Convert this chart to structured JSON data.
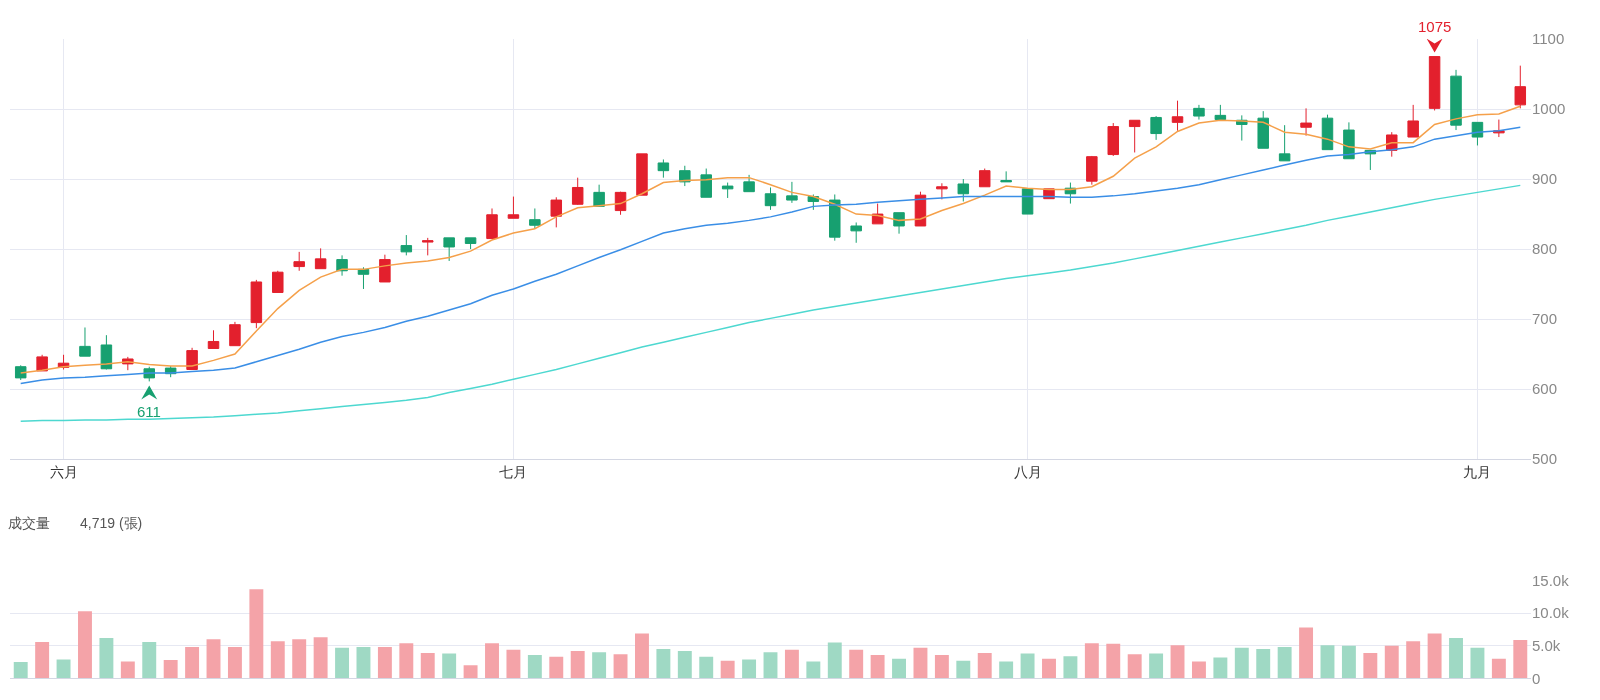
{
  "chart_data": [
    {
      "type": "candlestick",
      "categories": [
        null,
        null,
        "六月",
        null,
        null,
        null,
        null,
        null,
        null,
        null,
        null,
        null,
        null,
        null,
        null,
        null,
        null,
        null,
        null,
        null,
        null,
        null,
        null,
        "七月",
        null,
        null,
        null,
        null,
        null,
        null,
        null,
        null,
        null,
        null,
        null,
        null,
        null,
        null,
        null,
        null,
        null,
        null,
        null,
        null,
        null,
        null,
        null,
        "八月",
        null,
        null,
        null,
        null,
        null,
        null,
        null,
        null,
        null,
        null,
        null,
        null,
        null,
        null,
        null,
        null,
        null,
        null,
        null,
        null,
        "九月",
        null,
        null
      ],
      "series": [
        {
          "type": "candlestick",
          "ohlc": [
            [
              632,
              634,
              613,
              616
            ],
            [
              626,
              649,
              626,
              646
            ],
            [
              631,
              649,
              628,
              637
            ],
            [
              661,
              688,
              647,
              647
            ],
            [
              663,
              677,
              628,
              629
            ],
            [
              636,
              646,
              627,
              643
            ],
            [
              629,
              632,
              611,
              616
            ],
            [
              630,
              633,
              617,
              622
            ],
            [
              628,
              659,
              628,
              655
            ],
            [
              658,
              684,
              658,
              668
            ],
            [
              662,
              696,
              662,
              692
            ],
            [
              695,
              756,
              687,
              753
            ],
            [
              738,
              769,
              738,
              767
            ],
            [
              775,
              796,
              769,
              782
            ],
            [
              772,
              801,
              772,
              786
            ],
            [
              785,
              791,
              762,
              769
            ],
            [
              771,
              774,
              743,
              764
            ],
            [
              753,
              792,
              753,
              785
            ],
            [
              805,
              820,
              791,
              796
            ],
            [
              810,
              816,
              791,
              812
            ],
            [
              816,
              816,
              783,
              803
            ],
            [
              816,
              816,
              800,
              808
            ],
            [
              815,
              858,
              815,
              849
            ],
            [
              844,
              875,
              844,
              849
            ],
            [
              842,
              858,
              829,
              834
            ],
            [
              847,
              874,
              831,
              870
            ],
            [
              864,
              902,
              863,
              888
            ],
            [
              881,
              892,
              861,
              861
            ],
            [
              855,
              882,
              849,
              881
            ],
            [
              877,
              936,
              877,
              936
            ],
            [
              923,
              928,
              902,
              912
            ],
            [
              912,
              919,
              890,
              896
            ],
            [
              906,
              915,
              874,
              874
            ],
            [
              890,
              895,
              873,
              886
            ],
            [
              896,
              906,
              882,
              882
            ],
            [
              879,
              888,
              856,
              862
            ],
            [
              876,
              896,
              866,
              870
            ],
            [
              875,
              878,
              856,
              868
            ],
            [
              870,
              878,
              812,
              817
            ],
            [
              833,
              838,
              809,
              826
            ],
            [
              836,
              865,
              836,
              850
            ],
            [
              852,
              852,
              822,
              833
            ],
            [
              833,
              882,
              833,
              877
            ],
            [
              886,
              894,
              871,
              889
            ],
            [
              893,
              900,
              868,
              879
            ],
            [
              889,
              915,
              889,
              912
            ],
            [
              898,
              911,
              896,
              896
            ],
            [
              886,
              886,
              850,
              850
            ],
            [
              872,
              886,
              872,
              886
            ],
            [
              887,
              895,
              865,
              879
            ],
            [
              897,
              933,
              892,
              932
            ],
            [
              935,
              980,
              933,
              975
            ],
            [
              975,
              984,
              938,
              984
            ],
            [
              988,
              990,
              956,
              965
            ],
            [
              981,
              1012,
              969,
              989
            ],
            [
              1001,
              1006,
              985,
              990
            ],
            [
              991,
              1006,
              983,
              985
            ],
            [
              984,
              991,
              955,
              978
            ],
            [
              987,
              997,
              944,
              944
            ],
            [
              936,
              977,
              926,
              926
            ],
            [
              974,
              1001,
              962,
              980
            ],
            [
              987,
              992,
              942,
              942
            ],
            [
              970,
              981,
              929,
              929
            ],
            [
              941,
              941,
              913,
              936
            ],
            [
              941,
              967,
              932,
              963
            ],
            [
              960,
              1006,
              960,
              983
            ],
            [
              1001,
              1075,
              998,
              1075
            ],
            [
              1047,
              1056,
              970,
              977
            ],
            [
              981,
              981,
              948,
              960
            ],
            [
              966,
              985,
              960,
              969
            ],
            [
              1006,
              1062,
              1001,
              1032
            ]
          ],
          "colors": [
            "#17a070",
            "#e3202d",
            "#e3202d",
            "#17a070",
            "#17a070",
            "#e3202d",
            "#17a070",
            "#17a070",
            "#e3202d",
            "#e3202d",
            "#e3202d",
            "#e3202d",
            "#e3202d",
            "#e3202d",
            "#e3202d",
            "#17a070",
            "#17a070",
            "#e3202d",
            "#17a070",
            "#e3202d",
            "#17a070",
            "#17a070",
            "#e3202d",
            "#e3202d",
            "#17a070",
            "#e3202d",
            "#e3202d",
            "#17a070",
            "#e3202d",
            "#e3202d",
            "#17a070",
            "#17a070",
            "#17a070",
            "#17a070",
            "#17a070",
            "#17a070",
            "#17a070",
            "#17a070",
            "#17a070",
            "#17a070",
            "#e3202d",
            "#17a070",
            "#e3202d",
            "#e3202d",
            "#17a070",
            "#e3202d",
            "#17a070",
            "#17a070",
            "#e3202d",
            "#17a070",
            "#e3202d",
            "#e3202d",
            "#e3202d",
            "#17a070",
            "#e3202d",
            "#17a070",
            "#17a070",
            "#17a070",
            "#17a070",
            "#17a070",
            "#e3202d",
            "#17a070",
            "#17a070",
            "#17a070",
            "#e3202d",
            "#e3202d",
            "#e3202d",
            "#17a070",
            "#17a070",
            "#e3202d",
            "#e3202d"
          ]
        },
        {
          "type": "line",
          "color": "#f5a04a",
          "values": [
            623,
            627,
            632,
            634,
            636,
            639,
            635,
            633,
            633,
            641,
            650,
            683,
            715,
            741,
            760,
            771,
            771,
            776,
            780,
            783,
            788,
            797,
            813,
            823,
            829,
            846,
            859,
            862,
            865,
            879,
            895,
            898,
            899,
            902,
            902,
            892,
            881,
            875,
            864,
            850,
            848,
            841,
            843,
            855,
            865,
            877,
            890,
            887,
            885,
            885,
            889,
            904,
            930,
            946,
            968,
            980,
            984,
            983,
            981,
            967,
            964,
            957,
            946,
            943,
            952,
            952,
            978,
            986,
            992,
            993,
            1004
          ]
        },
        {
          "type": "line",
          "color": "#3a8ee6",
          "values": [
            608,
            613,
            616,
            617,
            619,
            621,
            623,
            623,
            625,
            627,
            630,
            639,
            648,
            657,
            667,
            675,
            681,
            688,
            697,
            704,
            713,
            722,
            734,
            743,
            754,
            764,
            776,
            788,
            799,
            811,
            823,
            829,
            834,
            837,
            841,
            846,
            853,
            861,
            863,
            864,
            867,
            869,
            871,
            873,
            875,
            875,
            875,
            875,
            875,
            874,
            874,
            876,
            879,
            883,
            887,
            892,
            899,
            906,
            913,
            920,
            927,
            933,
            935,
            939,
            942,
            946,
            957,
            962,
            967,
            969,
            974
          ]
        },
        {
          "type": "line",
          "color": "#4dd8d0",
          "values": [
            554,
            555,
            555,
            556,
            556,
            557,
            557,
            558,
            559,
            560,
            562,
            564,
            566,
            569,
            572,
            575,
            578,
            581,
            584,
            588,
            595,
            601,
            607,
            614,
            621,
            628,
            636,
            644,
            652,
            660,
            667,
            674,
            681,
            688,
            695,
            701,
            707,
            713,
            718,
            723,
            728,
            733,
            738,
            743,
            748,
            753,
            758,
            762,
            766,
            770,
            775,
            780,
            786,
            792,
            798,
            804,
            810,
            816,
            822,
            828,
            834,
            841,
            847,
            853,
            859,
            865,
            871,
            876,
            881,
            886,
            891
          ]
        }
      ],
      "ylim": [
        500,
        1100
      ],
      "yticks": [
        500,
        600,
        700,
        800,
        900,
        1000,
        1100
      ],
      "grid": true,
      "annotations": [
        {
          "text": "1075",
          "y": 1075
        },
        {
          "text": "611",
          "y": 611
        }
      ]
    },
    {
      "type": "bar",
      "title": "成交量",
      "categories": [
        null,
        null,
        null,
        null,
        null,
        null,
        null,
        null,
        null,
        null,
        null,
        null,
        null,
        null,
        null,
        null,
        null,
        null,
        null,
        null,
        null,
        null,
        null,
        null,
        null,
        null,
        null,
        null,
        null,
        null,
        null,
        null,
        null,
        null,
        null,
        null,
        null,
        null,
        null,
        null,
        null,
        null,
        null,
        null,
        null,
        null,
        null,
        null,
        null,
        null,
        null,
        null,
        null,
        null,
        null,
        null,
        null,
        null,
        null,
        null,
        null,
        null,
        null,
        null,
        null,
        null,
        null,
        null,
        null,
        null,
        null
      ],
      "values": [
        2500,
        5600,
        2900,
        10300,
        6200,
        2600,
        5600,
        2800,
        4800,
        6000,
        4800,
        13700,
        5700,
        6000,
        6300,
        4700,
        4800,
        4800,
        5400,
        3900,
        3800,
        2000,
        5400,
        4400,
        3600,
        3300,
        4200,
        4000,
        3700,
        6900,
        4500,
        4200,
        3300,
        2700,
        2900,
        4000,
        4400,
        2600,
        5500,
        4400,
        3600,
        3000,
        4700,
        3600,
        2700,
        3900,
        2600,
        3800,
        3000,
        3400,
        5400,
        5300,
        3700,
        3800,
        5100,
        2600,
        3200,
        4700,
        4500,
        4800,
        7800,
        5100,
        5000,
        3900,
        5000,
        5700,
        6900,
        6200,
        4700,
        3000,
        5900
      ],
      "colors": [
        "#9fd9c4",
        "#f4a3a8",
        "#9fd9c4",
        "#f4a3a8",
        "#9fd9c4",
        "#f4a3a8",
        "#9fd9c4",
        "#f4a3a8",
        "#f4a3a8",
        "#f4a3a8",
        "#f4a3a8",
        "#f4a3a8",
        "#f4a3a8",
        "#f4a3a8",
        "#f4a3a8",
        "#9fd9c4",
        "#9fd9c4",
        "#f4a3a8",
        "#f4a3a8",
        "#f4a3a8",
        "#9fd9c4",
        "#f4a3a8",
        "#f4a3a8",
        "#f4a3a8",
        "#9fd9c4",
        "#f4a3a8",
        "#f4a3a8",
        "#9fd9c4",
        "#f4a3a8",
        "#f4a3a8",
        "#9fd9c4",
        "#9fd9c4",
        "#9fd9c4",
        "#f4a3a8",
        "#9fd9c4",
        "#9fd9c4",
        "#f4a3a8",
        "#9fd9c4",
        "#9fd9c4",
        "#f4a3a8",
        "#f4a3a8",
        "#9fd9c4",
        "#f4a3a8",
        "#f4a3a8",
        "#9fd9c4",
        "#f4a3a8",
        "#9fd9c4",
        "#9fd9c4",
        "#f4a3a8",
        "#9fd9c4",
        "#f4a3a8",
        "#f4a3a8",
        "#f4a3a8",
        "#9fd9c4",
        "#f4a3a8",
        "#f4a3a8",
        "#9fd9c4",
        "#9fd9c4",
        "#9fd9c4",
        "#9fd9c4",
        "#f4a3a8",
        "#9fd9c4",
        "#9fd9c4",
        "#f4a3a8",
        "#f4a3a8",
        "#f4a3a8",
        "#f4a3a8",
        "#9fd9c4",
        "#9fd9c4",
        "#f4a3a8",
        "#f4a3a8"
      ],
      "ylim": [
        0,
        15000
      ],
      "yticks": [
        0,
        {
          "value": 5000,
          "label": "5.0k"
        },
        {
          "value": 10000,
          "label": "10.0k"
        },
        {
          "value": 15000,
          "label": "15.0k"
        }
      ],
      "grid": "y",
      "annotations": [
        "4,719 (張)"
      ]
    }
  ]
}
